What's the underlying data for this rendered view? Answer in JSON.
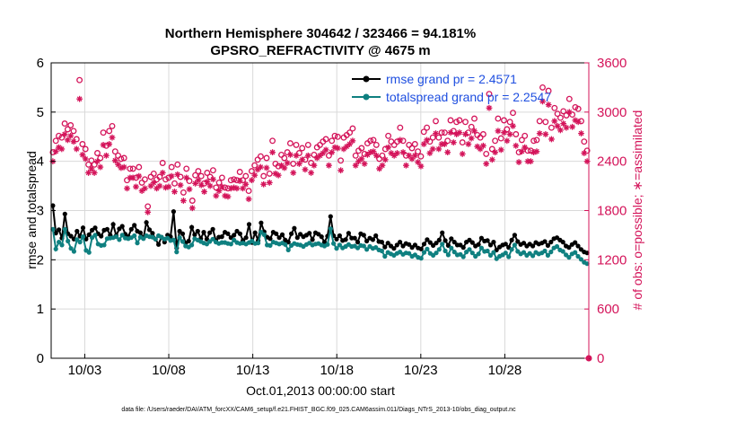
{
  "chart_data": {
    "type": "line",
    "title": "Northern Hemisphere 304642 / 323466 = 94.181%",
    "subtitle": "GPSRO_REFRACTIVITY @ 4675 m",
    "ylabel_left": "rmse and totalspread",
    "ylabel_right": "# of obs: o=possible; ∗=assimilated",
    "xlabel": "Oct.01,2013 00:00:00 start",
    "footnote": "data file: /Users/raeder/DAI/ATM_forcXX/CAM6_setup/f.e21.FHIST_BGC.f09_025.CAM6assim.011/Diags_NTrS_2013-10/obs_diag_output.nc",
    "x_ticks": [
      "10/03",
      "10/08",
      "10/13",
      "10/18",
      "10/23",
      "10/28"
    ],
    "x_tick_days": [
      3,
      8,
      13,
      18,
      23,
      28
    ],
    "xlim_days": [
      1,
      33
    ],
    "ylim_left": [
      0,
      6
    ],
    "yticks_left": [
      "0",
      "1",
      "2",
      "3",
      "4",
      "5",
      "6"
    ],
    "ylim_right": [
      0,
      3600
    ],
    "yticks_right": [
      "0",
      "600",
      "1200",
      "1800",
      "2400",
      "3000",
      "3600"
    ],
    "grid": true,
    "legend_placement": "top-right",
    "colors": {
      "rmse": "#000000",
      "spread": "#0f8080",
      "obs": "#d4145a",
      "legend_text": "#1f4fe0"
    },
    "series": [
      {
        "name": "rmse grand pr = 2.4571",
        "color": "#000000",
        "axis": "left",
        "values": [
          3.1,
          2.54,
          2.61,
          2.44,
          2.93,
          2.53,
          2.48,
          2.42,
          2.58,
          2.48,
          2.65,
          2.42,
          2.51,
          2.6,
          2.65,
          2.53,
          2.48,
          2.6,
          2.62,
          2.5,
          2.72,
          2.49,
          2.63,
          2.68,
          2.52,
          2.47,
          2.62,
          2.7,
          2.58,
          2.55,
          2.44,
          2.76,
          2.61,
          2.54,
          2.42,
          2.31,
          2.46,
          2.36,
          2.5,
          2.47,
          2.98,
          2.24,
          2.58,
          2.53,
          2.34,
          2.38,
          2.66,
          2.51,
          2.58,
          2.43,
          2.56,
          2.42,
          2.55,
          2.62,
          2.39,
          2.46,
          2.47,
          2.56,
          2.53,
          2.45,
          2.5,
          2.58,
          2.53,
          2.39,
          2.45,
          2.72,
          2.35,
          2.55,
          2.39,
          2.75,
          2.57,
          2.46,
          2.43,
          2.56,
          2.53,
          2.45,
          2.51,
          2.4,
          2.36,
          2.53,
          2.64,
          2.45,
          2.52,
          2.47,
          2.5,
          2.54,
          2.41,
          2.55,
          2.52,
          2.47,
          2.36,
          2.48,
          2.88,
          2.49,
          2.42,
          2.49,
          2.39,
          2.41,
          2.54,
          2.44,
          2.44,
          2.36,
          2.53,
          2.5,
          2.38,
          2.44,
          2.41,
          2.49,
          2.37,
          2.36,
          2.26,
          2.34,
          2.28,
          2.23,
          2.3,
          2.36,
          2.28,
          2.33,
          2.31,
          2.25,
          2.3,
          2.24,
          2.22,
          2.32,
          2.41,
          2.35,
          2.29,
          2.34,
          2.4,
          2.55,
          2.39,
          2.29,
          2.43,
          2.36,
          2.3,
          2.3,
          2.25,
          2.36,
          2.4,
          2.35,
          2.28,
          2.31,
          2.44,
          2.38,
          2.39,
          2.3,
          2.36,
          2.2,
          2.26,
          2.3,
          2.32,
          2.25,
          2.4,
          2.5,
          2.37,
          2.31,
          2.34,
          2.28,
          2.32,
          2.28,
          2.35,
          2.32,
          2.34,
          2.37,
          2.29,
          2.36,
          2.43,
          2.45,
          2.4,
          2.36,
          2.28,
          2.25,
          2.31,
          2.35,
          2.28,
          2.21,
          2.16,
          2.14
        ]
      },
      {
        "name": "totalspread grand pr = 2.2547",
        "color": "#0f8080",
        "axis": "left",
        "values": [
          2.62,
          2.22,
          2.36,
          2.3,
          2.62,
          2.38,
          2.23,
          2.17,
          2.41,
          2.36,
          2.47,
          2.19,
          2.15,
          2.45,
          2.5,
          2.32,
          2.29,
          2.3,
          2.43,
          2.44,
          2.45,
          2.47,
          2.41,
          2.5,
          2.44,
          2.43,
          2.45,
          2.49,
          2.34,
          2.46,
          2.43,
          2.49,
          2.47,
          2.46,
          2.42,
          2.49,
          2.46,
          2.42,
          2.44,
          2.39,
          2.4,
          2.16,
          2.45,
          2.37,
          2.28,
          2.26,
          2.3,
          2.43,
          2.4,
          2.37,
          2.34,
          2.32,
          2.37,
          2.42,
          2.36,
          2.33,
          2.35,
          2.35,
          2.33,
          2.32,
          2.4,
          2.35,
          2.33,
          2.34,
          2.32,
          2.35,
          2.38,
          2.33,
          2.34,
          2.56,
          2.51,
          2.3,
          2.29,
          2.36,
          2.34,
          2.32,
          2.34,
          2.31,
          2.2,
          2.29,
          2.33,
          2.31,
          2.3,
          2.27,
          2.31,
          2.34,
          2.3,
          2.32,
          2.33,
          2.3,
          2.28,
          2.31,
          2.63,
          2.33,
          2.23,
          2.3,
          2.24,
          2.27,
          2.31,
          2.27,
          2.28,
          2.24,
          2.29,
          2.28,
          2.21,
          2.27,
          2.23,
          2.25,
          2.2,
          2.18,
          2.07,
          2.15,
          2.12,
          2.09,
          2.13,
          2.16,
          2.11,
          2.14,
          2.13,
          2.07,
          2.1,
          2.05,
          2.03,
          2.15,
          2.22,
          2.13,
          2.09,
          2.14,
          2.21,
          2.32,
          2.18,
          2.1,
          2.24,
          2.16,
          2.1,
          2.11,
          2.06,
          2.16,
          2.21,
          2.14,
          2.07,
          2.12,
          2.24,
          2.17,
          2.18,
          2.09,
          2.15,
          2.02,
          2.07,
          2.1,
          2.14,
          2.06,
          2.21,
          2.3,
          2.17,
          2.12,
          2.15,
          2.09,
          2.13,
          2.08,
          2.15,
          2.12,
          2.14,
          2.18,
          2.09,
          2.16,
          2.24,
          2.27,
          2.2,
          2.17,
          2.1,
          2.05,
          2.12,
          2.15,
          2.07,
          2.01,
          1.95,
          1.92
        ]
      },
      {
        "name": "possible",
        "color": "#d4145a",
        "axis": "right",
        "marker": "o",
        "values": [
          2510,
          2650,
          2710,
          2690,
          2860,
          2790,
          2840,
          2770,
          2670,
          3390,
          2610,
          2550,
          2360,
          2410,
          2360,
          2500,
          2440,
          2750,
          2590,
          2770,
          2830,
          2520,
          2470,
          2430,
          2440,
          2170,
          2310,
          2310,
          2200,
          2330,
          2140,
          2180,
          1850,
          2210,
          2250,
          2180,
          2210,
          2380,
          2180,
          2200,
          2330,
          2130,
          2360,
          2210,
          2020,
          2310,
          2160,
          1920,
          2230,
          2280,
          2220,
          2130,
          2260,
          2210,
          2290,
          2080,
          2140,
          2200,
          2080,
          2070,
          2170,
          2180,
          2170,
          2270,
          2170,
          2220,
          2040,
          2280,
          2350,
          2420,
          2460,
          2220,
          2440,
          2250,
          2650,
          2370,
          2340,
          2480,
          2440,
          2510,
          2620,
          2370,
          2600,
          2500,
          2560,
          2420,
          2600,
          2380,
          2480,
          2570,
          2600,
          2640,
          2670,
          2470,
          2650,
          2710,
          2700,
          2410,
          2690,
          2720,
          2750,
          2800,
          2470,
          2530,
          2560,
          2490,
          2620,
          2650,
          2660,
          2600,
          2430,
          2470,
          2550,
          2710,
          2640,
          2600,
          2640,
          2810,
          2650,
          2470,
          2600,
          2560,
          2610,
          2520,
          2460,
          2760,
          2810,
          2640,
          2690,
          2890,
          2690,
          2750,
          2750,
          2650,
          2900,
          2770,
          2880,
          2900,
          2630,
          2880,
          2750,
          2820,
          2920,
          2720,
          2690,
          2730,
          2490,
          3220,
          2550,
          2650,
          2920,
          2680,
          2900,
          2790,
          2880,
          2990,
          2730,
          2510,
          2660,
          2710,
          2530,
          2530,
          2650,
          2660,
          2890,
          3300,
          2880,
          3260,
          2810,
          3050,
          2980,
          2930,
          3010,
          2960,
          3160,
          2970,
          3060,
          3040,
          2890,
          2640,
          2530
        ]
      },
      {
        "name": "assimilated",
        "color": "#d4145a",
        "axis": "right",
        "marker": "*",
        "values": [
          2400,
          2520,
          2570,
          2550,
          2730,
          2660,
          2710,
          2640,
          2550,
          3160,
          2480,
          2430,
          2260,
          2310,
          2260,
          2400,
          2330,
          2600,
          2470,
          2610,
          2690,
          2410,
          2360,
          2320,
          2330,
          2070,
          2200,
          2200,
          2090,
          2220,
          2040,
          2070,
          1780,
          2100,
          2140,
          2070,
          2100,
          2260,
          2080,
          2090,
          2220,
          2030,
          2240,
          2110,
          1920,
          2200,
          2060,
          1830,
          2130,
          2170,
          2110,
          2030,
          2150,
          2100,
          2180,
          1980,
          2040,
          2090,
          1980,
          1970,
          2070,
          2080,
          2070,
          2160,
          2070,
          2120,
          1940,
          2170,
          2230,
          2300,
          2330,
          2120,
          2320,
          2140,
          2510,
          2250,
          2230,
          2350,
          2320,
          2380,
          2480,
          2260,
          2470,
          2370,
          2420,
          2300,
          2470,
          2260,
          2350,
          2440,
          2470,
          2500,
          2540,
          2350,
          2510,
          2570,
          2560,
          2290,
          2550,
          2580,
          2610,
          2650,
          2350,
          2400,
          2430,
          2370,
          2480,
          2510,
          2520,
          2470,
          2310,
          2350,
          2420,
          2570,
          2500,
          2470,
          2500,
          2660,
          2510,
          2350,
          2470,
          2430,
          2470,
          2390,
          2340,
          2610,
          2660,
          2500,
          2550,
          2740,
          2550,
          2610,
          2610,
          2510,
          2750,
          2630,
          2730,
          2750,
          2490,
          2730,
          2610,
          2680,
          2770,
          2580,
          2550,
          2590,
          2370,
          3050,
          2420,
          2510,
          2770,
          2540,
          2750,
          2650,
          2730,
          2830,
          2590,
          2390,
          2520,
          2570,
          2400,
          2400,
          2510,
          2520,
          2740,
          3130,
          2730,
          3090,
          2670,
          2890,
          2830,
          2780,
          2860,
          2810,
          3000,
          2820,
          2900,
          2880,
          2740,
          2500,
          2400
        ]
      }
    ]
  }
}
